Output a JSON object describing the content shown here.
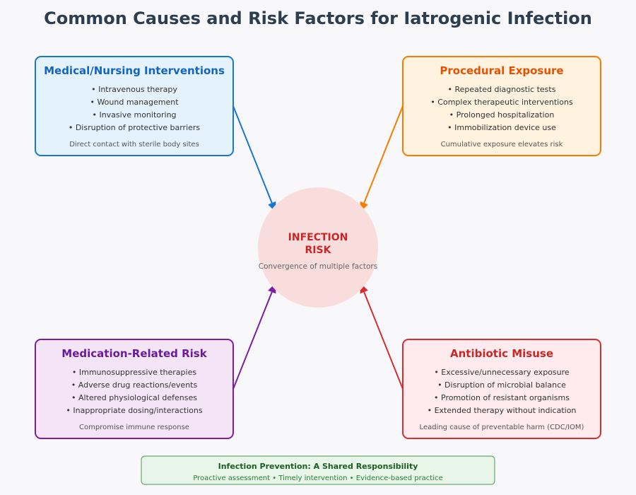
{
  "title": "Common Causes and Risk Factors for Iatrogenic Infection",
  "center": {
    "line1": "INFECTION",
    "line2": "RISK",
    "subtitle": "Convergence of multiple factors",
    "color": "#c62828",
    "fill": "#f9dcdc"
  },
  "boxes": [
    {
      "title": "Medical/Nursing Interventions",
      "items": [
        "• Intravenous therapy",
        "• Wound management",
        "• Invasive monitoring",
        "• Disruption of protective barriers"
      ],
      "note": "Direct contact with sterile body sites",
      "stroke": "#1976d2",
      "fill": "#e3f2fd",
      "titleColor": "#1565c0"
    },
    {
      "title": "Procedural Exposure",
      "items": [
        "• Repeated diagnostic tests",
        "• Complex therapeutic interventions",
        "• Prolonged hospitalization",
        "• Immobilization device use"
      ],
      "note": "Cumulative exposure elevates risk",
      "stroke": "#f57c00",
      "fill": "#fff3e0",
      "titleColor": "#e65100"
    },
    {
      "title": "Medication-Related Risk",
      "items": [
        "• Immunosuppressive therapies",
        "• Adverse drug reactions/events",
        "• Altered physiological defenses",
        "• Inappropriate dosing/interactions"
      ],
      "note": "Compromise immune response",
      "stroke": "#7b1fa2",
      "fill": "#f3e5f5",
      "titleColor": "#6a1b9a"
    },
    {
      "title": "Antibiotic Misuse",
      "items": [
        "• Excessive/unnecessary exposure",
        "• Disruption of microbial balance",
        "• Promotion of resistant organisms",
        "• Extended therapy without indication"
      ],
      "note": "Leading cause of preventable harm (CDC/IOM)",
      "stroke": "#d32f2f",
      "fill": "#ffebee",
      "titleColor": "#c62828"
    }
  ],
  "footer": {
    "title": "Infection Prevention: A Shared Responsibility",
    "subtitle": "Proactive assessment • Timely intervention • Evidence-based practice"
  }
}
